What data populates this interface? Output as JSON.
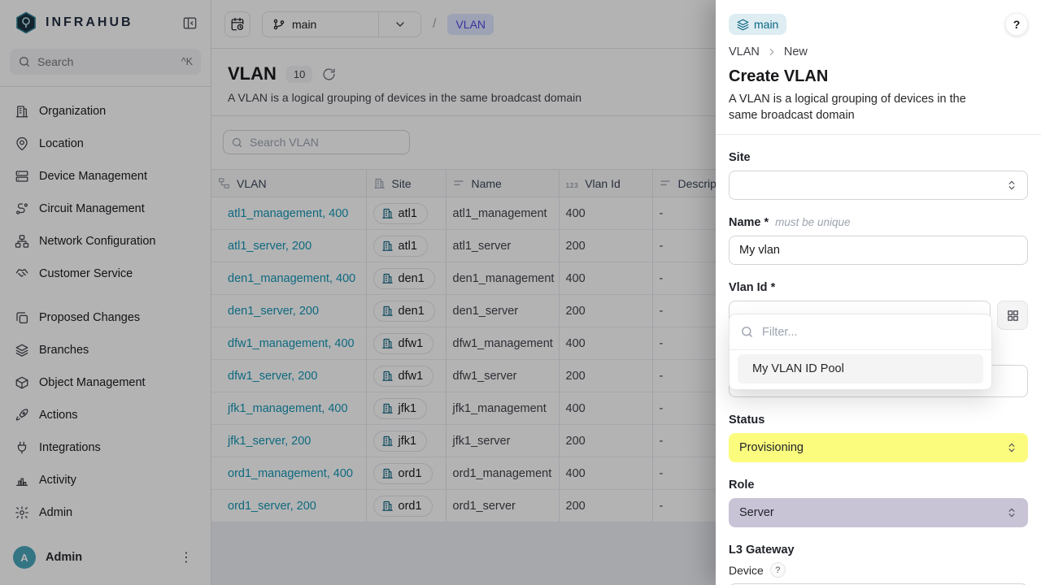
{
  "sidebar": {
    "logo_text": "INFRAHUB",
    "search": {
      "placeholder": "Search",
      "shortcut": "^K"
    },
    "nav_primary": [
      {
        "label": "Organization",
        "icon": "organization"
      },
      {
        "label": "Location",
        "icon": "location"
      },
      {
        "label": "Device Management",
        "icon": "device"
      },
      {
        "label": "Circuit Management",
        "icon": "circuit"
      },
      {
        "label": "Network Configuration",
        "icon": "network"
      },
      {
        "label": "Customer Service",
        "icon": "customer"
      }
    ],
    "nav_secondary": [
      {
        "label": "Proposed Changes",
        "icon": "proposed"
      },
      {
        "label": "Branches",
        "icon": "branches"
      },
      {
        "label": "Object Management",
        "icon": "object"
      },
      {
        "label": "Actions",
        "icon": "actions"
      },
      {
        "label": "Integrations",
        "icon": "integrations"
      },
      {
        "label": "Activity",
        "icon": "activity"
      },
      {
        "label": "Admin",
        "icon": "admin"
      }
    ],
    "user": {
      "initial": "A",
      "name": "Admin"
    }
  },
  "topbar": {
    "branch": "main",
    "separator": "/",
    "breadcrumb": "VLAN"
  },
  "page": {
    "title": "VLAN",
    "count": "10",
    "description": "A VLAN is a logical grouping of devices in the same broadcast domain",
    "search_placeholder": "Search VLAN"
  },
  "table": {
    "columns": [
      {
        "label": "VLAN",
        "icon": "relationship"
      },
      {
        "label": "Site",
        "icon": "building"
      },
      {
        "label": "Name",
        "icon": "textlines"
      },
      {
        "label": "Vlan Id",
        "icon": "number"
      },
      {
        "label": "Description",
        "icon": "textlines"
      }
    ],
    "rows": [
      {
        "vlan": "atl1_management, 400",
        "site": "atl1",
        "name": "atl1_management",
        "vlan_id": "400",
        "description": "-"
      },
      {
        "vlan": "atl1_server, 200",
        "site": "atl1",
        "name": "atl1_server",
        "vlan_id": "200",
        "description": "-"
      },
      {
        "vlan": "den1_management, 400",
        "site": "den1",
        "name": "den1_management",
        "vlan_id": "400",
        "description": "-"
      },
      {
        "vlan": "den1_server, 200",
        "site": "den1",
        "name": "den1_server",
        "vlan_id": "200",
        "description": "-"
      },
      {
        "vlan": "dfw1_management, 400",
        "site": "dfw1",
        "name": "dfw1_management",
        "vlan_id": "400",
        "description": "-"
      },
      {
        "vlan": "dfw1_server, 200",
        "site": "dfw1",
        "name": "dfw1_server",
        "vlan_id": "200",
        "description": "-"
      },
      {
        "vlan": "jfk1_management, 400",
        "site": "jfk1",
        "name": "jfk1_management",
        "vlan_id": "400",
        "description": "-"
      },
      {
        "vlan": "jfk1_server, 200",
        "site": "jfk1",
        "name": "jfk1_server",
        "vlan_id": "200",
        "description": "-"
      },
      {
        "vlan": "ord1_management, 400",
        "site": "ord1",
        "name": "ord1_management",
        "vlan_id": "400",
        "description": "-"
      },
      {
        "vlan": "ord1_server, 200",
        "site": "ord1",
        "name": "ord1_server",
        "vlan_id": "200",
        "description": "-"
      }
    ]
  },
  "drawer": {
    "branch_badge": "main",
    "help_label": "?",
    "breadcrumb": [
      "VLAN",
      "New"
    ],
    "title": "Create VLAN",
    "description": "A VLAN is a logical grouping of devices in the same broadcast domain",
    "fields": {
      "site_label": "Site",
      "name_label": "Name *",
      "name_hint": "must be unique",
      "name_value": "My vlan",
      "vlan_id_label": "Vlan Id *",
      "status_label": "Status",
      "status_value": "Provisioning",
      "role_label": "Role",
      "role_value": "Server",
      "l3_gateway_label": "L3 Gateway",
      "device_label": "Device",
      "device_help": "?"
    },
    "pool_dropdown": {
      "filter_placeholder": "Filter...",
      "options": [
        "My VLAN ID Pool"
      ]
    },
    "colors": {
      "status_bg": "#fbfb7e",
      "role_bg": "#c9c3d6",
      "link_teal": "#1095b2"
    }
  }
}
